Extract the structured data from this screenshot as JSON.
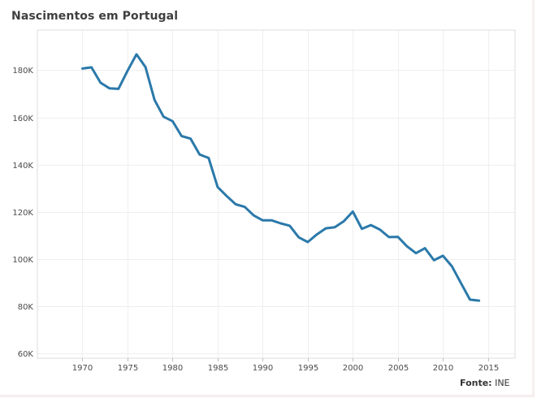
{
  "colors": {
    "line": "#2b79aa",
    "grid": "#efefef",
    "frame": "#dcdcdc",
    "text": "#4a4a4a",
    "title": "#3f3f3f"
  },
  "source": {
    "label": "Fonte:",
    "value": "INE"
  },
  "chart_data": {
    "type": "line",
    "title": "Nascimentos em Portugal",
    "xlabel": "",
    "ylabel": "",
    "xlim": [
      1965,
      2018
    ],
    "ylim": [
      58000,
      197000
    ],
    "x_ticks": [
      1970,
      1975,
      1980,
      1985,
      1990,
      1995,
      2000,
      2005,
      2010,
      2015
    ],
    "x_tick_labels": [
      "1970",
      "1975",
      "1980",
      "1985",
      "1990",
      "1995",
      "2000",
      "2005",
      "2010",
      "2015"
    ],
    "y_ticks": [
      60000,
      80000,
      100000,
      120000,
      140000,
      160000,
      180000
    ],
    "y_tick_labels": [
      "60K",
      "80K",
      "100K",
      "120K",
      "140K",
      "160K",
      "180K"
    ],
    "grid": true,
    "series": [
      {
        "name": "Nascimentos",
        "x": [
          1970,
          1971,
          1972,
          1973,
          1974,
          1975,
          1976,
          1977,
          1978,
          1979,
          1980,
          1981,
          1982,
          1983,
          1984,
          1985,
          1986,
          1987,
          1988,
          1989,
          1990,
          1991,
          1992,
          1993,
          1994,
          1995,
          1996,
          1997,
          1998,
          1999,
          2000,
          2001,
          2002,
          2003,
          2004,
          2005,
          2006,
          2007,
          2008,
          2009,
          2010,
          2011,
          2012,
          2013,
          2014
        ],
        "values": [
          180700,
          181200,
          174700,
          172300,
          172100,
          179700,
          186700,
          181300,
          167400,
          160300,
          158400,
          152100,
          151000,
          144300,
          142800,
          130500,
          126700,
          123200,
          122100,
          118500,
          116400,
          116400,
          115100,
          114100,
          109200,
          107200,
          110400,
          113000,
          113500,
          116000,
          120100,
          112800,
          114400,
          112500,
          109300,
          109400,
          105400,
          102500,
          104600,
          99500,
          101400,
          96900,
          89800,
          82800,
          82400
        ]
      }
    ]
  }
}
